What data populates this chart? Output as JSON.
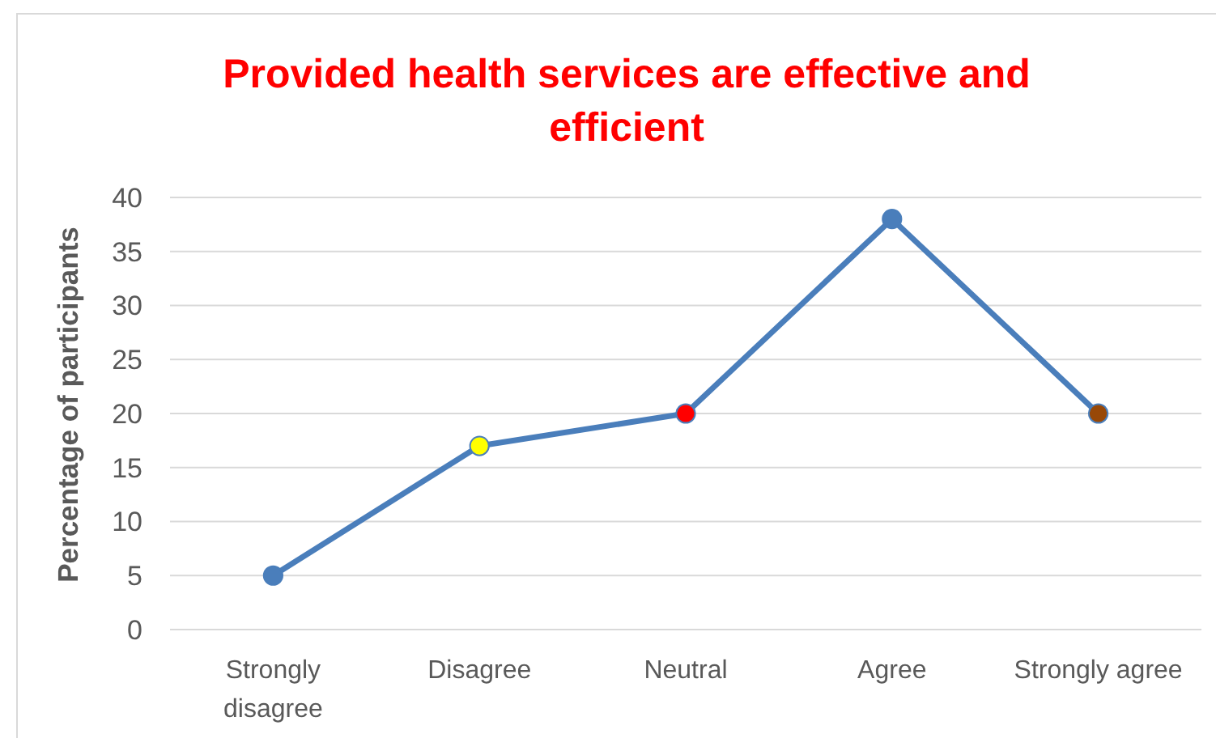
{
  "chart_data": {
    "type": "line",
    "title": "Provided health services are effective and efficient",
    "ylabel": "Percentage of participants",
    "categories": [
      "Strongly disagree",
      "Disagree",
      "Neutral",
      "Agree",
      "Strongly agree"
    ],
    "series": [
      {
        "color": "#4a7ebb",
        "values": [
          5,
          17,
          20,
          38,
          20
        ],
        "colors": [
          "#4a7ebb",
          "#ffff00",
          "#ff0000",
          "#4a7ebb",
          "#984807"
        ]
      }
    ],
    "ylim": [
      0,
      40
    ],
    "yticks": [
      0,
      5,
      10,
      15,
      20,
      25,
      30,
      35,
      40
    ],
    "grid": "y",
    "marker": "circle",
    "line_style": "solid"
  }
}
